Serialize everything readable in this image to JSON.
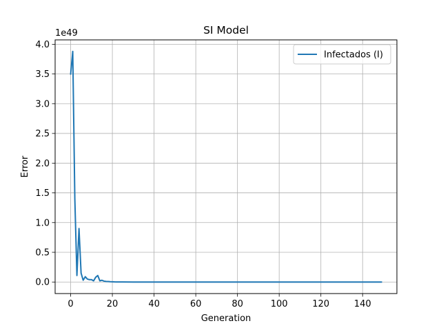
{
  "chart_data": {
    "type": "line",
    "title": "SI Model",
    "xlabel": "Generation",
    "ylabel": "Error",
    "y_offset_label": "1e49",
    "xlim": [
      -7.45,
      156.45
    ],
    "ylim": [
      -0.194,
      4.074
    ],
    "x_ticks": [
      0,
      20,
      40,
      60,
      80,
      100,
      120,
      140
    ],
    "x_tick_labels": [
      "0",
      "20",
      "40",
      "60",
      "80",
      "100",
      "120",
      "140"
    ],
    "y_ticks": [
      0.0,
      0.5,
      1.0,
      1.5,
      2.0,
      2.5,
      3.0,
      3.5,
      4.0
    ],
    "y_tick_labels": [
      "0.0",
      "0.5",
      "1.0",
      "1.5",
      "2.0",
      "2.5",
      "3.0",
      "3.5",
      "4.0"
    ],
    "grid": true,
    "legend_position": "top-right",
    "series": [
      {
        "name": "Infectados (I)",
        "color": "#1f77b4",
        "x": [
          0,
          1,
          2,
          3,
          4,
          5,
          6,
          7,
          8,
          9,
          10,
          11,
          12,
          13,
          14,
          15,
          16,
          17,
          18,
          19,
          20,
          21,
          22,
          25,
          30,
          40,
          60,
          80,
          100,
          120,
          140,
          149
        ],
        "values": [
          3.5,
          3.88,
          1.4,
          0.11,
          0.9,
          0.15,
          0.03,
          0.09,
          0.05,
          0.04,
          0.04,
          0.02,
          0.08,
          0.11,
          0.02,
          0.03,
          0.015,
          0.01,
          0.008,
          0.005,
          0.004,
          0.002,
          0.001,
          0.0005,
          0.0002,
          0.0001,
          0,
          0,
          0,
          0,
          0,
          0
        ]
      }
    ]
  }
}
